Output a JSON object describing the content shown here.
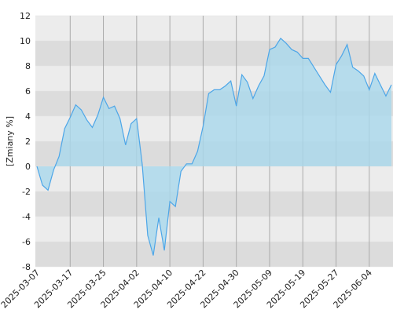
{
  "chart_data": {
    "type": "area",
    "y_label": "[Zmiany %]",
    "categories": [
      "2025-03-07",
      null,
      null,
      null,
      null,
      null,
      "2025-03-17",
      null,
      null,
      null,
      null,
      null,
      "2025-03-25",
      null,
      null,
      null,
      null,
      null,
      "2025-04-02",
      null,
      null,
      null,
      null,
      null,
      "2025-04-10",
      null,
      null,
      null,
      null,
      null,
      "2025-04-22",
      null,
      null,
      null,
      null,
      null,
      "2025-04-30",
      null,
      null,
      null,
      null,
      null,
      "2025-05-09",
      null,
      null,
      null,
      null,
      null,
      "2025-05-19",
      null,
      null,
      null,
      null,
      null,
      "2025-05-27",
      null,
      null,
      null,
      null,
      null,
      "2025-06-04",
      null,
      null,
      null,
      null
    ],
    "values": [
      0,
      -1.5,
      -1.9,
      -0.3,
      0.8,
      3.0,
      3.9,
      4.9,
      4.5,
      3.7,
      3.1,
      4.1,
      5.5,
      4.6,
      4.8,
      3.8,
      1.7,
      3.4,
      3.8,
      0.2,
      -5.5,
      -7.1,
      -4.1,
      -6.7,
      -2.8,
      -3.2,
      -0.4,
      0.2,
      0.2,
      1.2,
      3.2,
      5.8,
      6.1,
      6.1,
      6.4,
      6.8,
      4.8,
      7.3,
      6.7,
      5.4,
      6.4,
      7.2,
      9.3,
      9.5,
      10.2,
      9.8,
      9.3,
      9.1,
      8.6,
      8.6,
      7.9,
      7.2,
      6.5,
      5.9,
      8.1,
      8.8,
      9.7,
      7.9,
      7.6,
      7.2,
      6.1,
      7.4,
      6.5,
      5.6,
      6.5
    ],
    "color": "#4da6e8",
    "fill_color": "#a9d8ec",
    "ylim": [
      -8,
      12
    ],
    "yticks": [
      -8,
      -6,
      -4,
      -2,
      0,
      2,
      4,
      6,
      8,
      10,
      12
    ],
    "grid": true
  }
}
